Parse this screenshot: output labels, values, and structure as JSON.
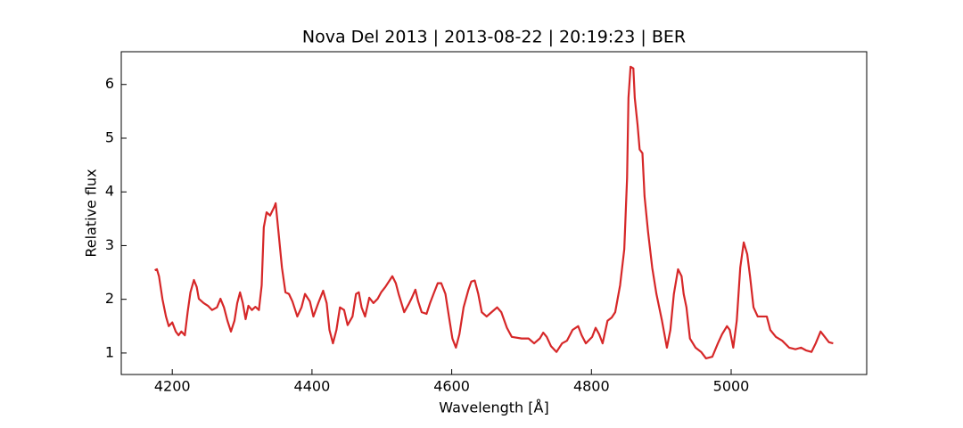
{
  "chart_data": {
    "type": "line",
    "title": "Nova Del 2013 | 2013-08-22 | 20:19:23 | BER",
    "x_label": "Wavelength [Å]",
    "y_label": "Relative flux",
    "xlim": [
      4127,
      5194
    ],
    "ylim": [
      0.6,
      6.61
    ],
    "xticks": [
      4200,
      4400,
      4600,
      4800,
      5000
    ],
    "yticks": [
      1,
      2,
      3,
      4,
      5,
      6
    ],
    "grid": false,
    "x": [
      4175,
      4178,
      4181,
      4186,
      4191,
      4195,
      4200,
      4205,
      4209,
      4213,
      4218,
      4222,
      4226,
      4231,
      4235,
      4238,
      4245,
      4251,
      4257,
      4264,
      4269,
      4274,
      4279,
      4284,
      4289,
      4293,
      4297,
      4301,
      4305,
      4309,
      4314,
      4319,
      4324,
      4328,
      4331,
      4335,
      4340,
      4346,
      4348,
      4352,
      4357,
      4362,
      4367,
      4372,
      4379,
      4385,
      4390,
      4397,
      4402,
      4409,
      4416,
      4421,
      4425,
      4430,
      4435,
      4440,
      4446,
      4451,
      4458,
      4463,
      4467,
      4471,
      4476,
      4482,
      4488,
      4494,
      4499,
      4505,
      4511,
      4515,
      4520,
      4524,
      4532,
      4538,
      4543,
      4548,
      4552,
      4557,
      4564,
      4569,
      4574,
      4580,
      4585,
      4591,
      4596,
      4601,
      4606,
      4611,
      4617,
      4624,
      4628,
      4633,
      4638,
      4643,
      4650,
      4657,
      4665,
      4671,
      4679,
      4686,
      4700,
      4710,
      4718,
      4726,
      4731,
      4736,
      4742,
      4750,
      4758,
      4765,
      4773,
      4781,
      4786,
      4792,
      4801,
      4806,
      4811,
      4816,
      4823,
      4829,
      4834,
      4841,
      4847,
      4851,
      4853,
      4856,
      4860,
      4862,
      4866,
      4869,
      4873,
      4876,
      4881,
      4887,
      4893,
      4901,
      4908,
      4913,
      4918,
      4924,
      4929,
      4932,
      4936,
      4941,
      4949,
      4957,
      4964,
      4973,
      4981,
      4987,
      4994,
      4998,
      5003,
      5008,
      5013,
      5018,
      5023,
      5027,
      5032,
      5038,
      5045,
      5051,
      5056,
      5064,
      5073,
      5083,
      5092,
      5100,
      5107,
      5115,
      5121,
      5128,
      5134,
      5140,
      5146
    ],
    "series": [
      {
        "name": "flux",
        "color": "#d62728",
        "values": [
          2.54,
          2.56,
          2.43,
          2.0,
          1.68,
          1.5,
          1.57,
          1.4,
          1.33,
          1.4,
          1.33,
          1.76,
          2.13,
          2.36,
          2.23,
          2.01,
          1.93,
          1.88,
          1.8,
          1.85,
          2.01,
          1.85,
          1.6,
          1.4,
          1.6,
          1.93,
          2.13,
          1.93,
          1.63,
          1.88,
          1.8,
          1.86,
          1.8,
          2.26,
          3.34,
          3.62,
          3.56,
          3.72,
          3.79,
          3.26,
          2.59,
          2.13,
          2.1,
          1.96,
          1.68,
          1.85,
          2.1,
          1.96,
          1.68,
          1.93,
          2.16,
          1.93,
          1.43,
          1.18,
          1.43,
          1.85,
          1.8,
          1.52,
          1.68,
          2.1,
          2.13,
          1.85,
          1.68,
          2.03,
          1.93,
          2.01,
          2.13,
          2.23,
          2.35,
          2.43,
          2.3,
          2.1,
          1.76,
          1.9,
          2.03,
          2.18,
          1.96,
          1.76,
          1.73,
          1.93,
          2.1,
          2.3,
          2.3,
          2.1,
          1.68,
          1.27,
          1.1,
          1.35,
          1.85,
          2.18,
          2.33,
          2.35,
          2.1,
          1.76,
          1.68,
          1.76,
          1.85,
          1.76,
          1.47,
          1.3,
          1.27,
          1.27,
          1.18,
          1.27,
          1.38,
          1.3,
          1.13,
          1.02,
          1.18,
          1.23,
          1.43,
          1.5,
          1.33,
          1.18,
          1.3,
          1.47,
          1.35,
          1.18,
          1.6,
          1.66,
          1.76,
          2.26,
          2.93,
          4.26,
          5.75,
          6.33,
          6.3,
          5.75,
          5.25,
          4.79,
          4.72,
          3.92,
          3.26,
          2.59,
          2.1,
          1.6,
          1.1,
          1.43,
          2.1,
          2.56,
          2.43,
          2.1,
          1.85,
          1.27,
          1.1,
          1.02,
          0.9,
          0.93,
          1.18,
          1.35,
          1.5,
          1.43,
          1.1,
          1.6,
          2.59,
          3.06,
          2.84,
          2.43,
          1.85,
          1.68,
          1.68,
          1.68,
          1.43,
          1.3,
          1.23,
          1.1,
          1.07,
          1.1,
          1.05,
          1.02,
          1.18,
          1.4,
          1.3,
          1.2,
          1.18
        ]
      }
    ]
  }
}
